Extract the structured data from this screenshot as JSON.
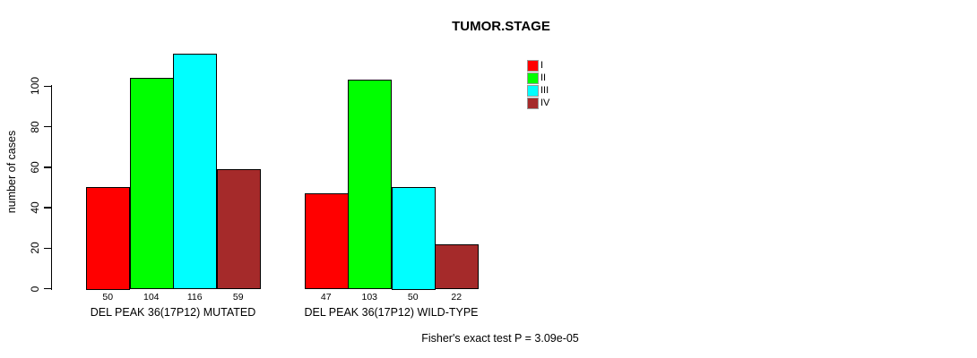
{
  "title": "TUMOR.STAGE",
  "chart_data": {
    "type": "bar",
    "title": "TUMOR.STAGE",
    "xlabel": "",
    "ylabel": "number of cases",
    "ylim": [
      0,
      116
    ],
    "yticks": [
      0,
      20,
      40,
      60,
      80,
      100
    ],
    "grid": false,
    "legend_position": "top-right",
    "series": [
      {
        "name": "I",
        "color": "#FF0000"
      },
      {
        "name": "II",
        "color": "#00FF00"
      },
      {
        "name": "III",
        "color": "#00FFFF"
      },
      {
        "name": "IV",
        "color": "#A52A2A"
      }
    ],
    "groups": [
      {
        "label": "DEL PEAK 36(17P12) MUTATED",
        "values": [
          50,
          104,
          116,
          59
        ]
      },
      {
        "label": "DEL PEAK 36(17P12) WILD-TYPE",
        "values": [
          47,
          103,
          50,
          22
        ]
      }
    ],
    "bar_value_labels": true,
    "annotation": "Fisher's exact test P = 3.09e-05"
  }
}
